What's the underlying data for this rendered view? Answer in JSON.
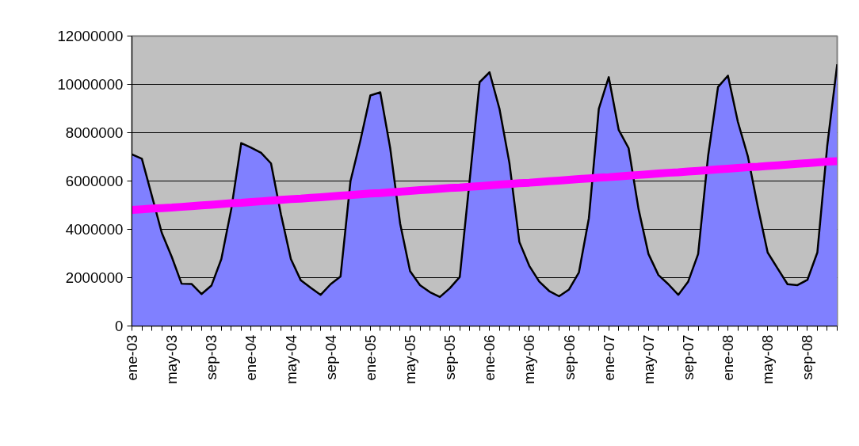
{
  "chart_data": {
    "type": "area",
    "categories": [
      "ene-03",
      null,
      null,
      null,
      "may-03",
      null,
      null,
      null,
      "sep-03",
      null,
      null,
      null,
      "ene-04",
      null,
      null,
      null,
      "may-04",
      null,
      null,
      null,
      "sep-04",
      null,
      null,
      null,
      "ene-05",
      null,
      null,
      null,
      "may-05",
      null,
      null,
      null,
      "sep-05",
      null,
      null,
      null,
      "ene-06",
      null,
      null,
      null,
      "may-06",
      null,
      null,
      null,
      "sep-06",
      null,
      null,
      null,
      "ene-07",
      null,
      null,
      null,
      "may-07",
      null,
      null,
      null,
      "sep-07",
      null,
      null,
      null,
      "ene-08",
      null,
      null,
      null,
      "may-08",
      null,
      null,
      null,
      "sep-08",
      null,
      null,
      null
    ],
    "series": [
      {
        "color": "#8080ff",
        "values": [
          7100000,
          6920000,
          5400000,
          3860000,
          2870000,
          1750000,
          1740000,
          1320000,
          1670000,
          2770000,
          4840000,
          7570000,
          7380000,
          7170000,
          6730000,
          4620000,
          2770000,
          1890000,
          1580000,
          1290000,
          1730000,
          2050000,
          5990000,
          7680000,
          9540000,
          9670000,
          7360000,
          4240000,
          2270000,
          1690000,
          1400000,
          1200000,
          1560000,
          2030000,
          6040000,
          10090000,
          10500000,
          8990000,
          6750000,
          3480000,
          2490000,
          1840000,
          1450000,
          1230000,
          1510000,
          2220000,
          4460000,
          8990000,
          10300000,
          8120000,
          7360000,
          4840000,
          2980000,
          2110000,
          1730000,
          1290000,
          1840000,
          2980000,
          7030000,
          9890000,
          10360000,
          8450000,
          7030000,
          4950000,
          3040000,
          2380000,
          1730000,
          1690000,
          1910000,
          3040000,
          7470000,
          10830000
        ]
      },
      {
        "type": "line",
        "color": "#ff00ff",
        "values": [
          4800000,
          4830000,
          4860000,
          4880000,
          4900000,
          4930000,
          4960000,
          4990000,
          5020000,
          5050000,
          5080000,
          5100000,
          5130000,
          5160000,
          5190000,
          5220000,
          5250000,
          5270000,
          5300000,
          5330000,
          5360000,
          5390000,
          5420000,
          5450000,
          5480000,
          5500000,
          5530000,
          5560000,
          5590000,
          5620000,
          5650000,
          5680000,
          5710000,
          5730000,
          5760000,
          5790000,
          5820000,
          5850000,
          5880000,
          5910000,
          5930000,
          5960000,
          5990000,
          6020000,
          6050000,
          6080000,
          6110000,
          6140000,
          6160000,
          6190000,
          6220000,
          6250000,
          6280000,
          6310000,
          6340000,
          6360000,
          6390000,
          6420000,
          6450000,
          6480000,
          6510000,
          6540000,
          6570000,
          6590000,
          6620000,
          6650000,
          6680000,
          6710000,
          6740000,
          6770000,
          6800000,
          6820000
        ]
      }
    ],
    "ylim": [
      0,
      12000000
    ],
    "yticks": [
      0,
      2000000,
      4000000,
      6000000,
      8000000,
      10000000,
      12000000
    ],
    "grid": "y"
  }
}
